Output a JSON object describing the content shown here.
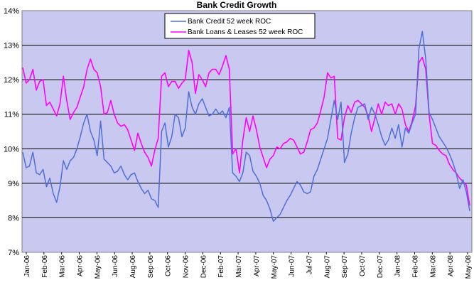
{
  "chart_data": {
    "type": "line",
    "title": "Bank Credit Growth",
    "xlabel": "",
    "ylabel": "",
    "ylim": [
      7,
      14
    ],
    "ytick_labels": [
      "7%",
      "8%",
      "9%",
      "10%",
      "11%",
      "12%",
      "13%",
      "14%"
    ],
    "xtick_labels": [
      "Jan-06",
      "Feb-06",
      "Mar-06",
      "Apr-06",
      "May-06",
      "Jun-06",
      "Aug-06",
      "Sep-06",
      "Oct-06",
      "Nov-06",
      "Dec-06",
      "Feb-07",
      "Mar-07",
      "Apr-07",
      "May-07",
      "Jun-07",
      "Jul-07",
      "Aug-07",
      "Sep-07",
      "Oct-07",
      "Dec-07",
      "Jan-08",
      "Feb-08",
      "Mar-08",
      "Apr-08",
      "May-08"
    ],
    "grid": true,
    "legend_position": "top-center",
    "plot_background": "#c8c8f0",
    "series": [
      {
        "name": "Bank Credit 52 week ROC",
        "color": "#4f6fd8",
        "values": [
          9.9,
          9.45,
          9.5,
          9.9,
          9.3,
          9.25,
          9.4,
          8.9,
          9.15,
          8.7,
          8.45,
          8.9,
          9.65,
          9.4,
          9.65,
          9.75,
          10.0,
          10.35,
          10.75,
          11.0,
          10.5,
          10.25,
          9.8,
          10.8,
          9.7,
          9.6,
          9.5,
          9.3,
          9.35,
          9.5,
          9.25,
          9.1,
          9.25,
          9.3,
          9.05,
          8.85,
          8.7,
          8.8,
          8.55,
          8.5,
          8.3,
          10.5,
          10.75,
          10.05,
          10.35,
          11.0,
          10.9,
          10.35,
          10.6,
          11.65,
          11.2,
          11.0,
          11.3,
          11.45,
          11.2,
          10.95,
          11.0,
          11.15,
          11.0,
          11.1,
          10.9,
          11.2,
          9.3,
          9.2,
          9.05,
          9.3,
          9.9,
          9.8,
          9.35,
          9.2,
          9.0,
          8.65,
          8.5,
          8.25,
          7.9,
          8.0,
          8.1,
          8.3,
          8.5,
          8.65,
          8.85,
          9.05,
          8.95,
          8.75,
          8.7,
          8.75,
          9.2,
          9.4,
          9.7,
          10.0,
          10.3,
          10.85,
          11.4,
          10.85,
          11.35,
          9.6,
          9.85,
          10.45,
          10.9,
          11.2,
          11.25,
          11.3,
          10.85,
          11.2,
          11.0,
          10.7,
          10.35,
          10.1,
          10.25,
          10.6,
          10.3,
          10.7,
          10.05,
          10.6,
          10.45,
          10.75,
          11.0,
          12.9,
          13.4,
          12.6,
          11.05,
          10.85,
          10.6,
          10.35,
          10.2,
          10.05,
          9.85,
          9.6,
          9.3,
          8.85,
          9.1,
          8.75,
          8.2
        ],
        "x_range": [
          0,
          130
        ]
      },
      {
        "name": "Bank Loans & Leases 52 week ROC",
        "color": "#ff00ff",
        "values": [
          12.35,
          11.9,
          12.0,
          12.3,
          11.7,
          11.95,
          12.0,
          11.25,
          11.35,
          11.15,
          10.95,
          11.3,
          12.1,
          11.4,
          10.85,
          11.05,
          11.2,
          11.5,
          11.8,
          12.3,
          12.6,
          12.3,
          12.2,
          11.8,
          11.0,
          11.05,
          11.4,
          11.0,
          10.75,
          10.65,
          10.7,
          10.55,
          10.25,
          9.95,
          10.45,
          10.15,
          9.9,
          9.75,
          9.5,
          9.95,
          10.3,
          12.1,
          12.2,
          11.8,
          11.95,
          11.95,
          11.75,
          11.9,
          12.0,
          12.85,
          12.5,
          11.6,
          12.15,
          12.0,
          11.8,
          12.2,
          12.3,
          12.3,
          12.15,
          12.4,
          12.7,
          12.3,
          9.85,
          10.0,
          9.3,
          10.25,
          10.9,
          10.5,
          10.95,
          10.55,
          10.05,
          9.75,
          9.45,
          9.7,
          9.8,
          10.05,
          10.0,
          10.15,
          10.2,
          10.3,
          10.25,
          10.05,
          9.85,
          9.9,
          10.2,
          10.55,
          10.6,
          10.75,
          11.1,
          11.5,
          12.2,
          12.05,
          12.1,
          10.3,
          10.25,
          10.9,
          11.25,
          11.05,
          11.35,
          11.4,
          11.3,
          11.2,
          10.95,
          10.5,
          10.9,
          11.3,
          11.0,
          11.35,
          11.25,
          11.3,
          11.0,
          11.3,
          11.15,
          10.7,
          10.5,
          10.8,
          11.25,
          12.5,
          12.65,
          12.3,
          11.0,
          10.15,
          10.1,
          9.95,
          9.85,
          9.8,
          9.55,
          9.4,
          9.3,
          9.15,
          9.05,
          8.95,
          8.35
        ],
        "x_range": [
          0,
          130
        ]
      }
    ]
  }
}
